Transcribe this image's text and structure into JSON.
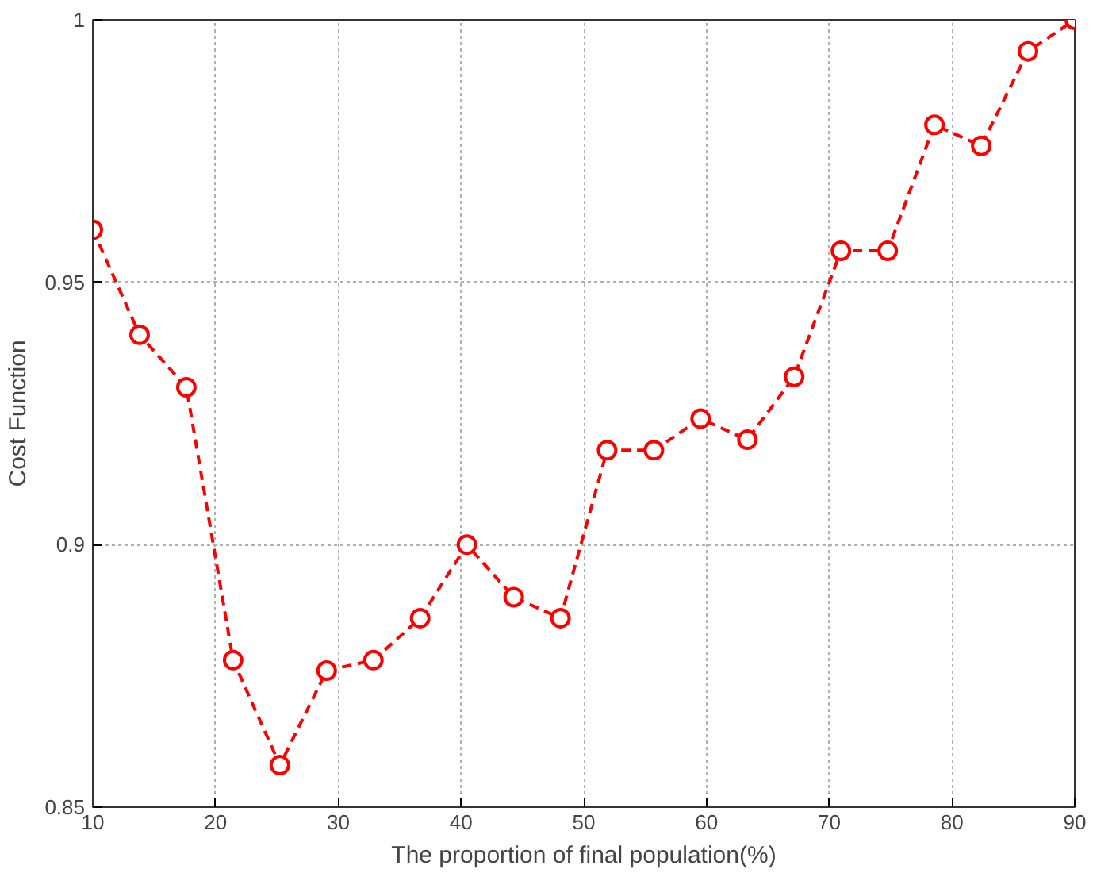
{
  "chart_data": {
    "type": "line",
    "xlabel": "The proportion of final population(%)",
    "ylabel": "Cost Function",
    "x": [
      10,
      13.81,
      17.62,
      21.43,
      25.24,
      29.05,
      32.86,
      36.67,
      40.48,
      44.29,
      48.1,
      51.9,
      55.71,
      59.52,
      63.33,
      67.14,
      70.95,
      74.76,
      78.57,
      82.38,
      86.19,
      90
    ],
    "series": [
      {
        "color": "#ff0000",
        "values": [
          0.96,
          0.94,
          0.93,
          0.878,
          0.858,
          0.876,
          0.878,
          0.886,
          0.9,
          0.89,
          0.886,
          0.918,
          0.918,
          0.924,
          0.92,
          0.932,
          0.956,
          0.956,
          0.98,
          0.976,
          0.994,
          1.0
        ]
      }
    ],
    "xlim": [
      10,
      90
    ],
    "ylim": [
      0.85,
      1
    ],
    "xticks": [
      10,
      20,
      30,
      40,
      50,
      60,
      70,
      80,
      90
    ],
    "yticks": [
      0.85,
      0.9,
      0.95,
      {
        "value": 1,
        "label": "1"
      }
    ],
    "grid": true,
    "marker": "circle",
    "line_style": "dashed"
  }
}
